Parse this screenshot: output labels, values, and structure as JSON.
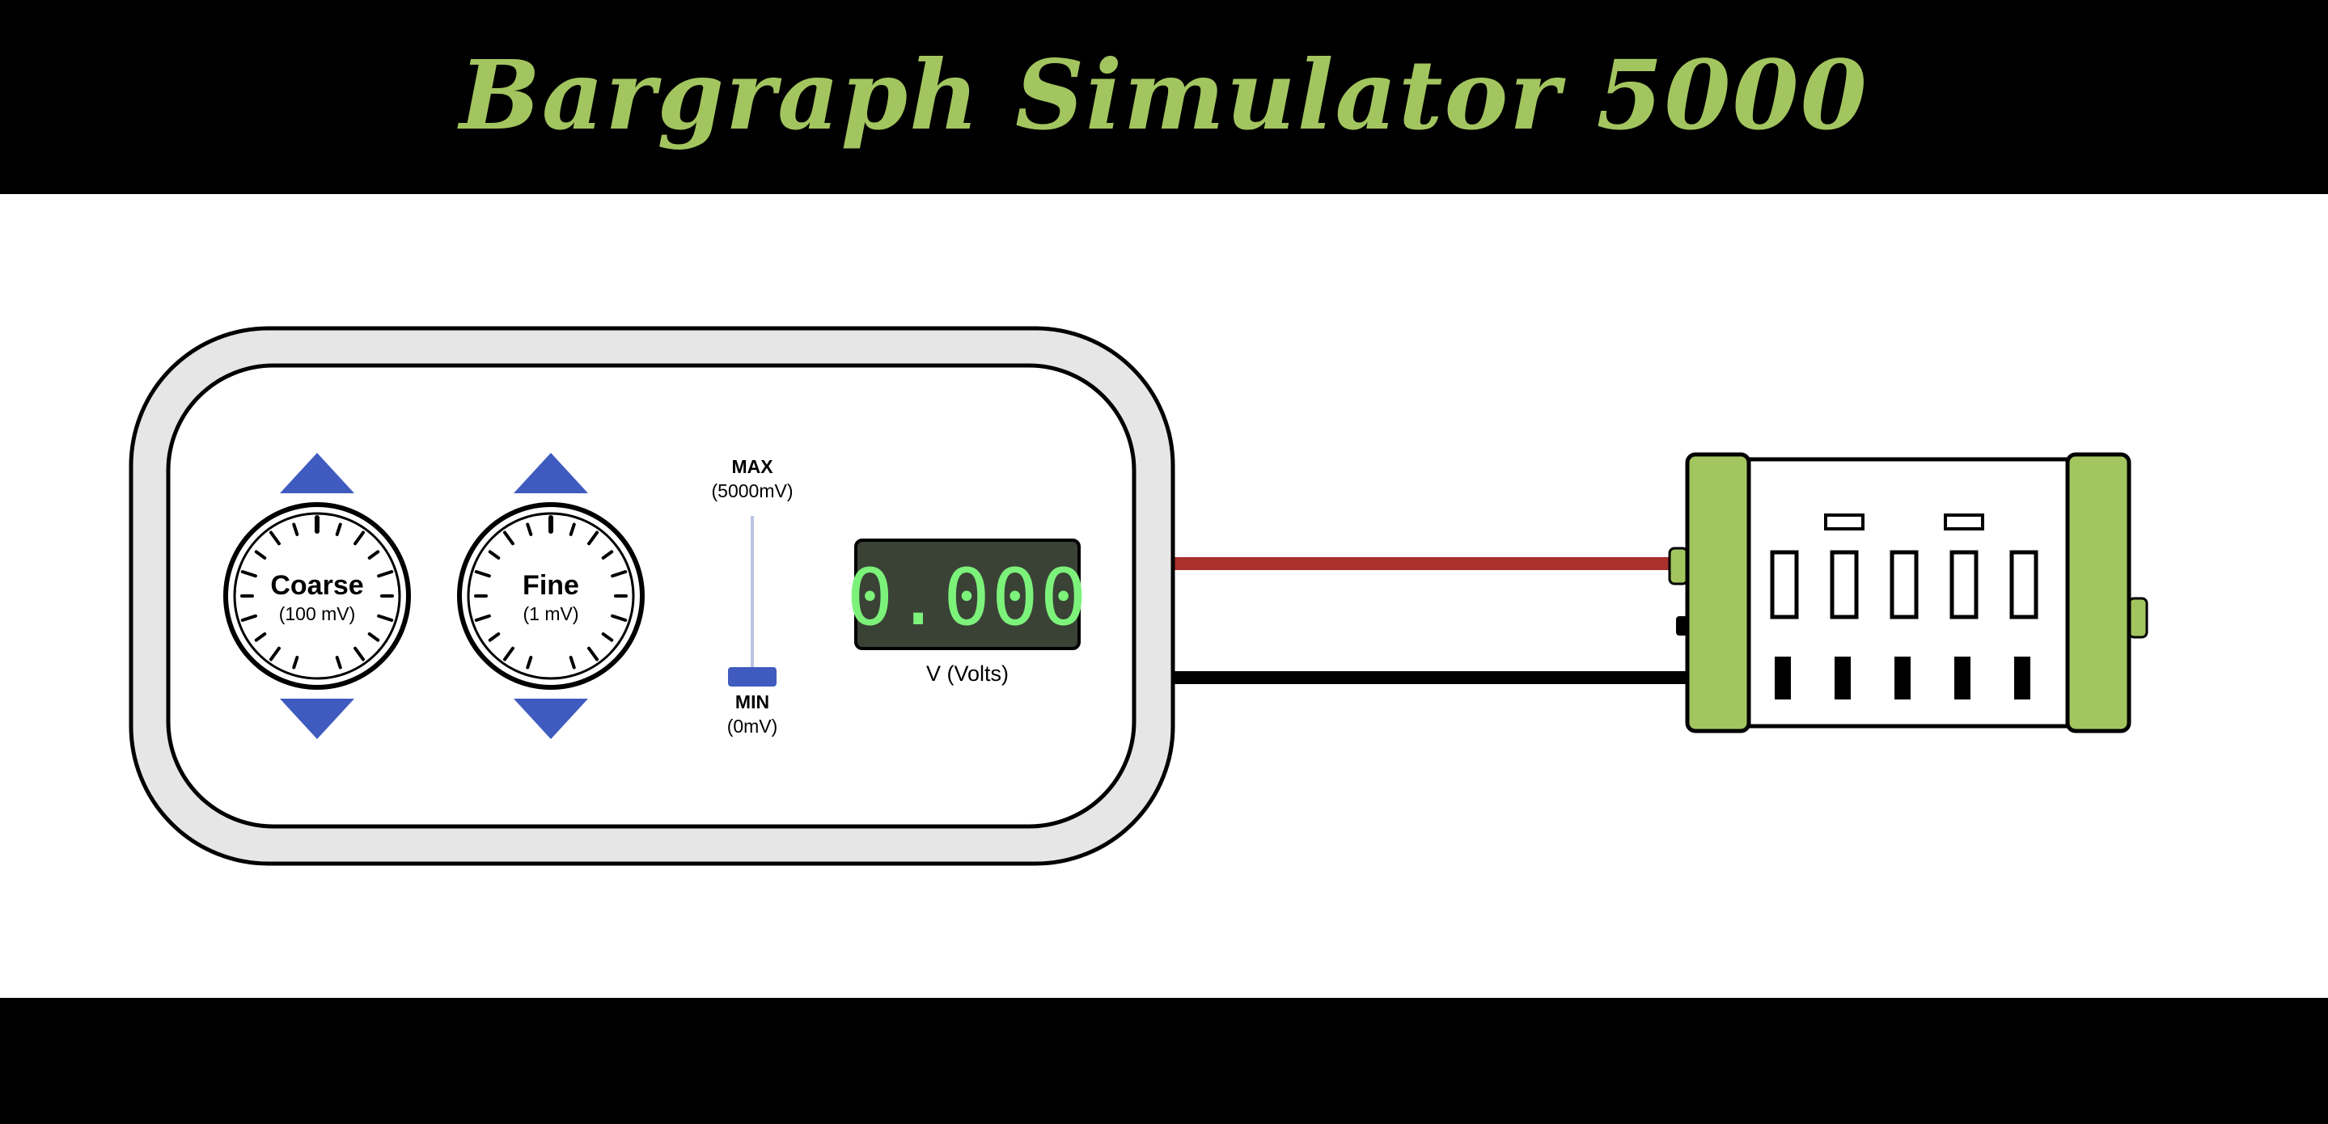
{
  "header": {
    "title": "Bargraph Simulator 5000"
  },
  "controls": {
    "coarse": {
      "label": "Coarse",
      "step": "(100 mV)"
    },
    "fine": {
      "label": "Fine",
      "step": "(1 mV)"
    },
    "slider": {
      "max_label": "MAX",
      "max_value": "(5000mV)",
      "min_label": "MIN",
      "min_value": "(0mV)",
      "level_fraction": 0
    },
    "display": {
      "value": "0.000",
      "unit": "V (Volts)"
    }
  },
  "bargraph": {
    "segment_count": 5,
    "lit_segments": 0
  },
  "colors": {
    "accent_blue": "#3f5bbf",
    "title_green": "#a3c55f",
    "module_green": "#a3c55f",
    "display_bg": "#3a4236",
    "display_digits": "#7cf27a",
    "positive_wire": "#a9302c",
    "ground_wire": "#000000",
    "panel_grey": "#e6e6e6"
  },
  "icons": {
    "increment": "triangle-up-icon",
    "decrement": "triangle-down-icon"
  }
}
